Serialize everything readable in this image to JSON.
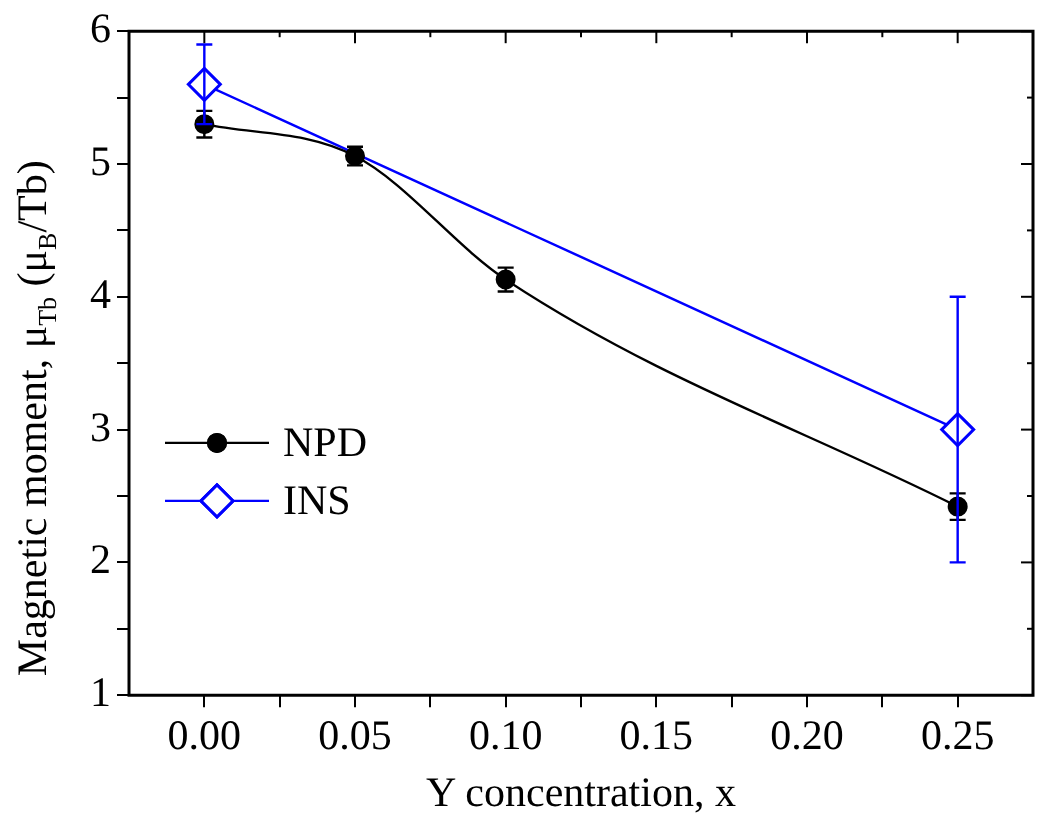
{
  "chart_data": {
    "type": "line",
    "xlabel": "Y concentration, x",
    "ylabel": "Magnetic moment, μ$_{Tb}$ (μ$_{B}$/Tb)",
    "xlim": [
      -0.025,
      0.275
    ],
    "xticks": [
      {
        "value": 0,
        "label": "0.00"
      },
      {
        "value": 0.025,
        "label": null
      },
      {
        "value": 0.05,
        "label": "0.05"
      },
      {
        "value": 0.075,
        "label": null
      },
      {
        "value": 0.1,
        "label": "0.10"
      },
      {
        "value": 0.125,
        "label": null
      },
      {
        "value": 0.15,
        "label": "0.15"
      },
      {
        "value": 0.175,
        "label": null
      },
      {
        "value": 0.2,
        "label": "0.20"
      },
      {
        "value": 0.225,
        "label": null
      },
      {
        "value": 0.25,
        "label": "0.25"
      }
    ],
    "ylim": [
      1,
      6
    ],
    "yticks": [
      1,
      {
        "value": 1.5,
        "label": null
      },
      2,
      {
        "value": 2.5,
        "label": null
      },
      3,
      {
        "value": 3.5,
        "label": null
      },
      4,
      {
        "value": 4.5,
        "label": null
      },
      5,
      {
        "value": 5.5,
        "label": null
      },
      6
    ],
    "grid": false,
    "legend": "left",
    "series": [
      {
        "name": "NPD",
        "color": "#000000",
        "marker": "circle",
        "x": [
          0,
          0.05,
          0.1,
          0.25
        ],
        "values": [
          5.3,
          5.06,
          4.13,
          2.42
        ],
        "errors": [
          0.1,
          0.07,
          0.09,
          0.1
        ]
      },
      {
        "name": "INS",
        "color": "#0000ff",
        "marker": "diamond",
        "x": [
          0,
          0.25
        ],
        "values": [
          5.6,
          3.0
        ],
        "errors": [
          0.3,
          1.0
        ]
      }
    ]
  }
}
